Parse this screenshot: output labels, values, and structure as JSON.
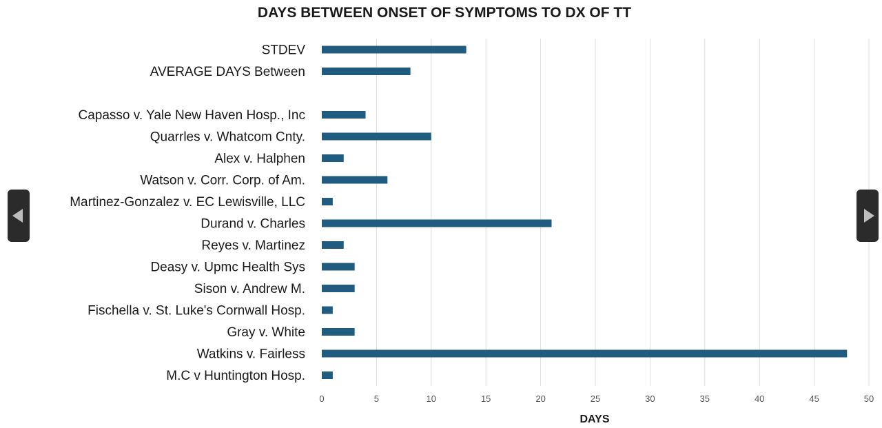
{
  "chart_data": {
    "type": "bar",
    "orientation": "horizontal",
    "title": "DAYS BETWEEN ONSET OF SYMPTOMS TO DX OF TT",
    "xlabel": "DAYS",
    "ylabel": "",
    "xlim": [
      0,
      50
    ],
    "xticks": [
      0,
      5,
      10,
      15,
      20,
      25,
      30,
      35,
      40,
      45,
      50
    ],
    "grid": "vertical",
    "bar_color": "#1f5c80",
    "categories": [
      "STDEV",
      "AVERAGE DAYS Between",
      "",
      "Capasso v. Yale New Haven Hosp., Inc",
      "Quarrles v. Whatcom Cnty.",
      "Alex v. Halphen",
      "Watson v. Corr. Corp. of Am.",
      "Martinez-Gonzalez v. EC Lewisville, LLC",
      "Durand v. Charles",
      "Reyes v. Martinez",
      "Deasy v. Upmc Health Sys",
      "Sison v. Andrew M.",
      "Fischella v. St. Luke's Cornwall Hosp.",
      "Gray v. White",
      "Watkins v. Fairless",
      "M.C v Huntington Hosp."
    ],
    "values": [
      13.2,
      8.1,
      null,
      4,
      10,
      2,
      6,
      1,
      21,
      2,
      3,
      3,
      1,
      3,
      48,
      1
    ]
  },
  "nav": {
    "prev_icon": "chevron-left-icon",
    "next_icon": "chevron-right-icon"
  }
}
